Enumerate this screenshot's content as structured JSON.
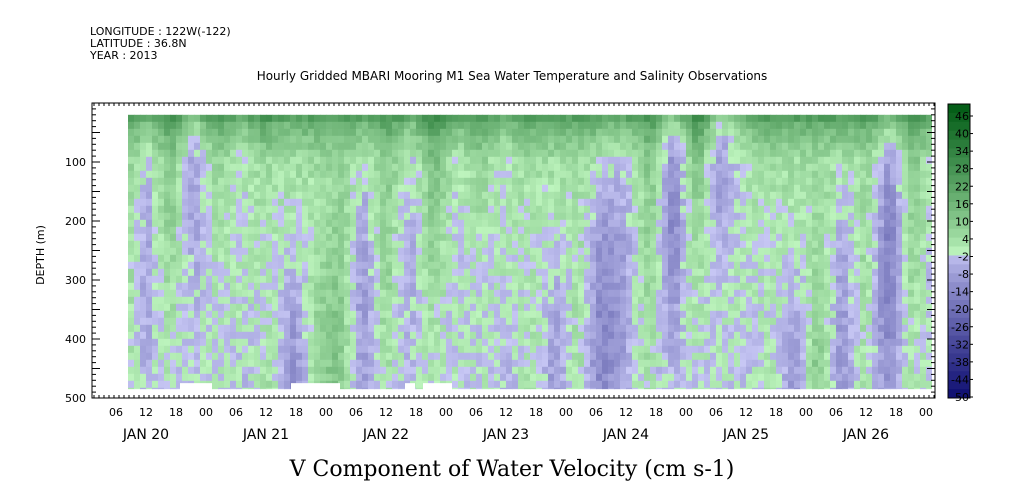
{
  "header": {
    "longitude": "LONGITUDE : 122W(-122)",
    "latitude": "LATITUDE : 36.8N",
    "year": "YEAR : 2013"
  },
  "chart_data": {
    "type": "heatmap",
    "title": "Hourly Gridded MBARI Mooring M1 Sea Water Temperature and Salinity Observations",
    "ylabel": "DEPTH (m)",
    "variable_label": "V Component of Water Velocity (cm s-1)",
    "y_axis": {
      "min": 0,
      "max": 500,
      "reversed": true,
      "ticks": [
        100,
        200,
        300,
        400,
        500
      ]
    },
    "x_axis": {
      "start_hour_label": "06",
      "hour_ticks": [
        "06",
        "12",
        "18",
        "00",
        "06",
        "12",
        "18",
        "00",
        "06",
        "12",
        "18",
        "00",
        "06",
        "12",
        "18",
        "00",
        "06",
        "12",
        "18",
        "00",
        "06",
        "12",
        "18",
        "00",
        "06",
        "12",
        "18",
        "00"
      ],
      "day_labels": [
        "JAN 20",
        "JAN 21",
        "JAN 22",
        "JAN 23",
        "JAN 24",
        "JAN 25",
        "JAN 26"
      ]
    },
    "data_extent": {
      "time_start": "JAN 20 12",
      "time_end": "JAN 26 24",
      "depth_min": 20,
      "depth_max": 485
    },
    "colorbar": {
      "labels": [
        "46",
        "40",
        "34",
        "28",
        "22",
        "16",
        "10",
        "4",
        "-2",
        "-8",
        "-14",
        "-20",
        "-26",
        "-32",
        "-38",
        "-44",
        "-50"
      ],
      "min": -50,
      "max": 50,
      "step": 3
    },
    "field_description": "alternating columns of positive (green) and negative (blue) velocity; green dominates near surface",
    "pattern": [
      {
        "t": 0.0,
        "v": 2
      },
      {
        "t": 0.02,
        "v": -6
      },
      {
        "t": 0.05,
        "v": 6
      },
      {
        "t": 0.08,
        "v": -10
      },
      {
        "t": 0.11,
        "v": 4
      },
      {
        "t": 0.14,
        "v": -8
      },
      {
        "t": 0.17,
        "v": 8
      },
      {
        "t": 0.2,
        "v": -14
      },
      {
        "t": 0.23,
        "v": 6
      },
      {
        "t": 0.26,
        "v": 10
      },
      {
        "t": 0.29,
        "v": -8
      },
      {
        "t": 0.32,
        "v": 6
      },
      {
        "t": 0.35,
        "v": -6
      },
      {
        "t": 0.38,
        "v": 8
      },
      {
        "t": 0.41,
        "v": -4
      },
      {
        "t": 0.44,
        "v": 4
      },
      {
        "t": 0.47,
        "v": -10
      },
      {
        "t": 0.5,
        "v": 6
      },
      {
        "t": 0.53,
        "v": -8
      },
      {
        "t": 0.56,
        "v": 4
      },
      {
        "t": 0.59,
        "v": -12
      },
      {
        "t": 0.62,
        "v": -6
      },
      {
        "t": 0.65,
        "v": 6
      },
      {
        "t": 0.68,
        "v": -14
      },
      {
        "t": 0.71,
        "v": 8
      },
      {
        "t": 0.74,
        "v": -16
      },
      {
        "t": 0.77,
        "v": -6
      },
      {
        "t": 0.8,
        "v": 4
      },
      {
        "t": 0.83,
        "v": -10
      },
      {
        "t": 0.86,
        "v": 10
      },
      {
        "t": 0.89,
        "v": -8
      },
      {
        "t": 0.92,
        "v": 4
      },
      {
        "t": 0.95,
        "v": -14
      },
      {
        "t": 0.98,
        "v": 6
      },
      {
        "t": 1.0,
        "v": -2
      }
    ]
  }
}
